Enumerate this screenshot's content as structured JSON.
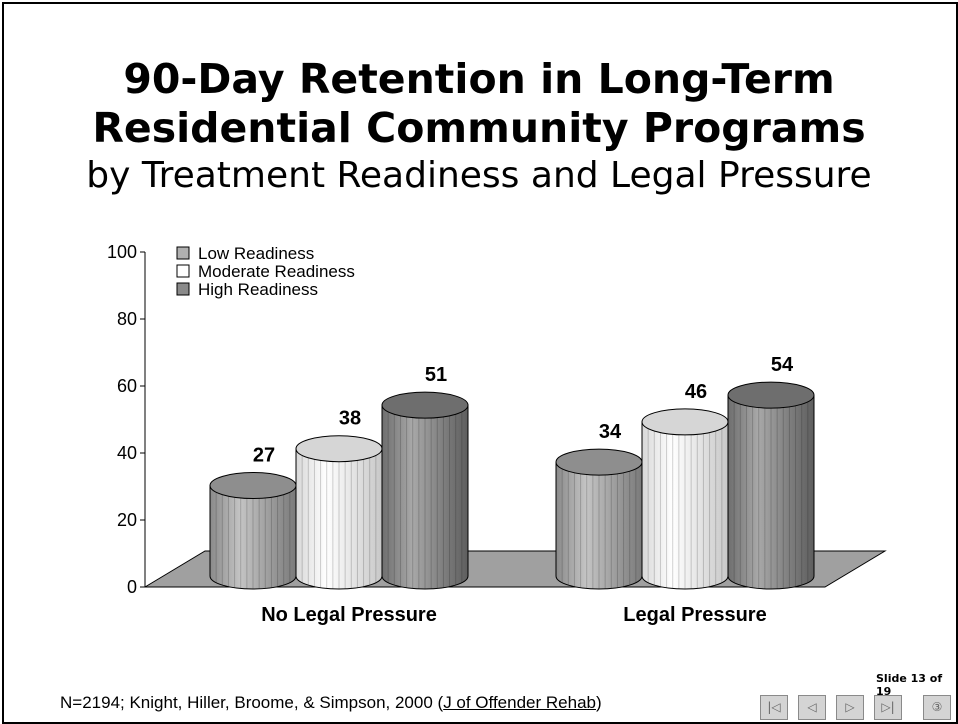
{
  "slide": {
    "title_line1": "90-Day Retention in Long-Term",
    "title_line2": "Residential Community Programs",
    "subtitle": "by Treatment Readiness and Legal Pressure",
    "citation_prefix": "N=2194; Knight, Hiller, Broome, & Simpson, 2000 (",
    "citation_journal": "J of Offender Rehab",
    "citation_suffix": ")",
    "counter": "Slide 13 of 19"
  },
  "nav": {
    "first_icon": "first-slide-icon",
    "prev_icon": "previous-slide-icon",
    "next_icon": "next-slide-icon",
    "last_icon": "last-slide-icon",
    "extra_icon": "slide-index-icon"
  },
  "chart_data": {
    "type": "bar",
    "style": "3d-cylinder",
    "title": "90-Day Retention in Long-Term Residential Community Programs",
    "subtitle": "by Treatment Readiness and Legal Pressure",
    "categories": [
      "No Legal Pressure",
      "Legal Pressure"
    ],
    "series": [
      {
        "name": "Low Readiness",
        "values": [
          27,
          34
        ],
        "color": "#a6a6a6"
      },
      {
        "name": "Moderate Readiness",
        "values": [
          38,
          46
        ],
        "color": "#f2f2f2"
      },
      {
        "name": "High Readiness",
        "values": [
          51,
          54
        ],
        "color": "#8c8c8c"
      }
    ],
    "yticks": [
      0,
      20,
      40,
      60,
      80,
      100
    ],
    "ylim": [
      0,
      100
    ],
    "xlabel": "",
    "ylabel": "",
    "grid": false,
    "legend_position": "top-left",
    "floor_color": "#a0a0a0"
  }
}
